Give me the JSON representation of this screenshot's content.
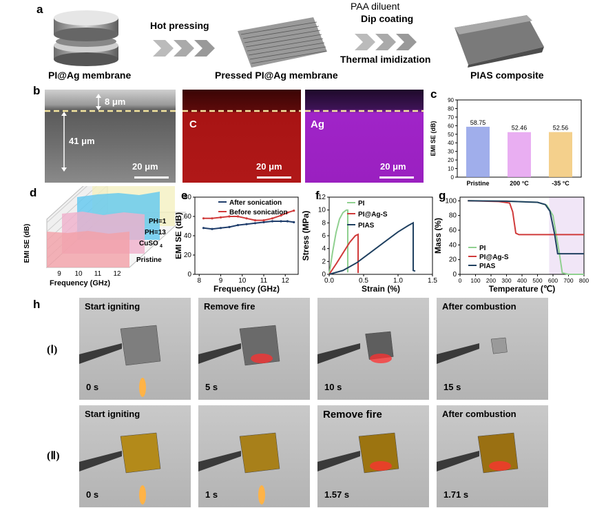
{
  "panel_a": {
    "label": "a",
    "step1_label": "Hot pressing",
    "step2_line1": "PAA diluent",
    "step2_line2": "Dip coating",
    "step2_line3": "Thermal imidization",
    "item1": "PI@Ag membrane",
    "item2": "Pressed PI@Ag membrane",
    "item3": "PIAS composite"
  },
  "panel_b": {
    "label": "b",
    "thickness_top": "8 μm",
    "thickness_main": "41 μm",
    "scale1": "20 μm",
    "map_c": "C",
    "scale2": "20 μm",
    "map_ag": "Ag",
    "scale3": "20 μm"
  },
  "panel_h": {
    "label": "h",
    "row1_label": "(Ⅰ)",
    "row2_label": "(Ⅱ)",
    "row1": [
      {
        "title": "Start igniting",
        "time": "0 s"
      },
      {
        "title": "Remove fire",
        "time": "5 s"
      },
      {
        "title": "",
        "time": "10 s"
      },
      {
        "title": "After combustion",
        "time": "15 s"
      }
    ],
    "row2": [
      {
        "title": "Start igniting",
        "time": "0 s"
      },
      {
        "title": "",
        "time": "1 s"
      },
      {
        "title": "Remove fire",
        "time": "1.57 s"
      },
      {
        "title": "After combustion",
        "time": "1.71 s"
      }
    ]
  },
  "chart_data": [
    {
      "id": "c",
      "type": "bar",
      "label": "c",
      "categories": [
        "Pristine",
        "200 °C",
        "-35 °C"
      ],
      "values": [
        58.75,
        52.46,
        52.56
      ],
      "value_labels": [
        "58.75",
        "52.46",
        "52.56"
      ],
      "ylabel": "EMI SE (dB)",
      "ylim": [
        0,
        90
      ],
      "yticks": [
        "0",
        "10",
        "20",
        "30",
        "40",
        "50",
        "60",
        "70",
        "80",
        "90"
      ],
      "colors": [
        "#8fa0e8",
        "#e5a0f0",
        "#f2c878"
      ]
    },
    {
      "id": "d",
      "type": "area",
      "label": "d",
      "ylabel": "EMI SE (dB)",
      "xlabel": "Frequency (GHz)",
      "xticks": [
        "9",
        "10",
        "11",
        "12"
      ],
      "series": [
        {
          "name": "Pristine",
          "color": "#f2a0a8"
        },
        {
          "name": "CuSO4",
          "color": "#f0b0cc"
        },
        {
          "name": "PH=13",
          "color": "#60c8f0"
        },
        {
          "name": "PH=1",
          "color": "#f4f0c0"
        }
      ],
      "legend_labels": [
        "PH=1",
        "PH=13",
        "CuSO",
        "4",
        "Pristine"
      ]
    },
    {
      "id": "e",
      "type": "line",
      "label": "e",
      "xlabel": "Frequency (GHz)",
      "ylabel": "EMI SE (dB)",
      "xlim": [
        7.8,
        12.6
      ],
      "ylim": [
        0,
        80
      ],
      "xticks": [
        "8",
        "9",
        "10",
        "11",
        "12"
      ],
      "yticks": [
        "0",
        "20",
        "40",
        "60",
        "80"
      ],
      "x": [
        8.2,
        8.6,
        9.0,
        9.4,
        9.8,
        10.2,
        10.6,
        11.0,
        11.4,
        11.8,
        12.1,
        12.4
      ],
      "series": [
        {
          "name": "After sonication",
          "color": "#1f3d6b",
          "values": [
            48,
            47,
            48,
            49,
            51,
            52,
            53,
            54,
            55,
            55,
            55,
            54
          ]
        },
        {
          "name": "Before sonication",
          "color": "#d03a3a",
          "values": [
            58,
            58,
            59,
            60,
            60,
            58,
            56,
            56,
            58,
            61,
            64,
            66
          ]
        }
      ]
    },
    {
      "id": "f",
      "type": "line",
      "label": "f",
      "xlabel": "Strain (%)",
      "ylabel": "Stress (MPa)",
      "xlim": [
        0,
        1.5
      ],
      "ylim": [
        0,
        12
      ],
      "xticks": [
        "0.0",
        "0.5",
        "1.0",
        "1.5"
      ],
      "yticks": [
        "0",
        "2",
        "4",
        "6",
        "8",
        "10",
        "12"
      ],
      "series": [
        {
          "name": "PI",
          "color": "#8fd08f",
          "x": [
            0,
            0.05,
            0.1,
            0.15,
            0.2,
            0.25,
            0.27,
            0.27
          ],
          "values": [
            0,
            3.5,
            6.5,
            8.6,
            9.6,
            10.0,
            10.0,
            0.3
          ]
        },
        {
          "name": "PI@Ag-S",
          "color": "#d03a3a",
          "x": [
            0,
            0.1,
            0.2,
            0.3,
            0.38,
            0.42,
            0.42
          ],
          "values": [
            0,
            1.6,
            3.3,
            5.0,
            6.0,
            6.2,
            0.2
          ]
        },
        {
          "name": "PIAS",
          "color": "#1f4060",
          "x": [
            0,
            0.2,
            0.4,
            0.6,
            0.8,
            1.0,
            1.15,
            1.22,
            1.22,
            1.25
          ],
          "values": [
            0,
            0.6,
            1.8,
            3.4,
            5.0,
            6.6,
            7.6,
            8.0,
            0.6,
            0.5
          ]
        }
      ]
    },
    {
      "id": "g",
      "type": "line",
      "label": "g",
      "xlabel": "Temperature (℃)",
      "ylabel": "Mass (%)",
      "xlim": [
        0,
        800
      ],
      "ylim": [
        0,
        105
      ],
      "xticks": [
        "0",
        "100",
        "200",
        "300",
        "400",
        "500",
        "600",
        "700",
        "800"
      ],
      "yticks": [
        "0",
        "20",
        "40",
        "60",
        "80",
        "100"
      ],
      "series": [
        {
          "name": "PI",
          "color": "#8fd08f",
          "x": [
            50,
            300,
            500,
            560,
            600,
            640,
            660,
            700,
            800
          ],
          "values": [
            100,
            99.5,
            98,
            94,
            80,
            30,
            2,
            0,
            0
          ]
        },
        {
          "name": "PI@Ag-S",
          "color": "#d03a3a",
          "x": [
            50,
            250,
            320,
            340,
            360,
            380,
            800
          ],
          "values": [
            100,
            99,
            97,
            85,
            56,
            54,
            54
          ]
        },
        {
          "name": "PIAS",
          "color": "#1f4060",
          "x": [
            50,
            300,
            500,
            550,
            580,
            610,
            630,
            650,
            800
          ],
          "values": [
            100,
            99.5,
            98,
            95,
            86,
            55,
            28,
            28,
            28
          ]
        }
      ]
    }
  ]
}
